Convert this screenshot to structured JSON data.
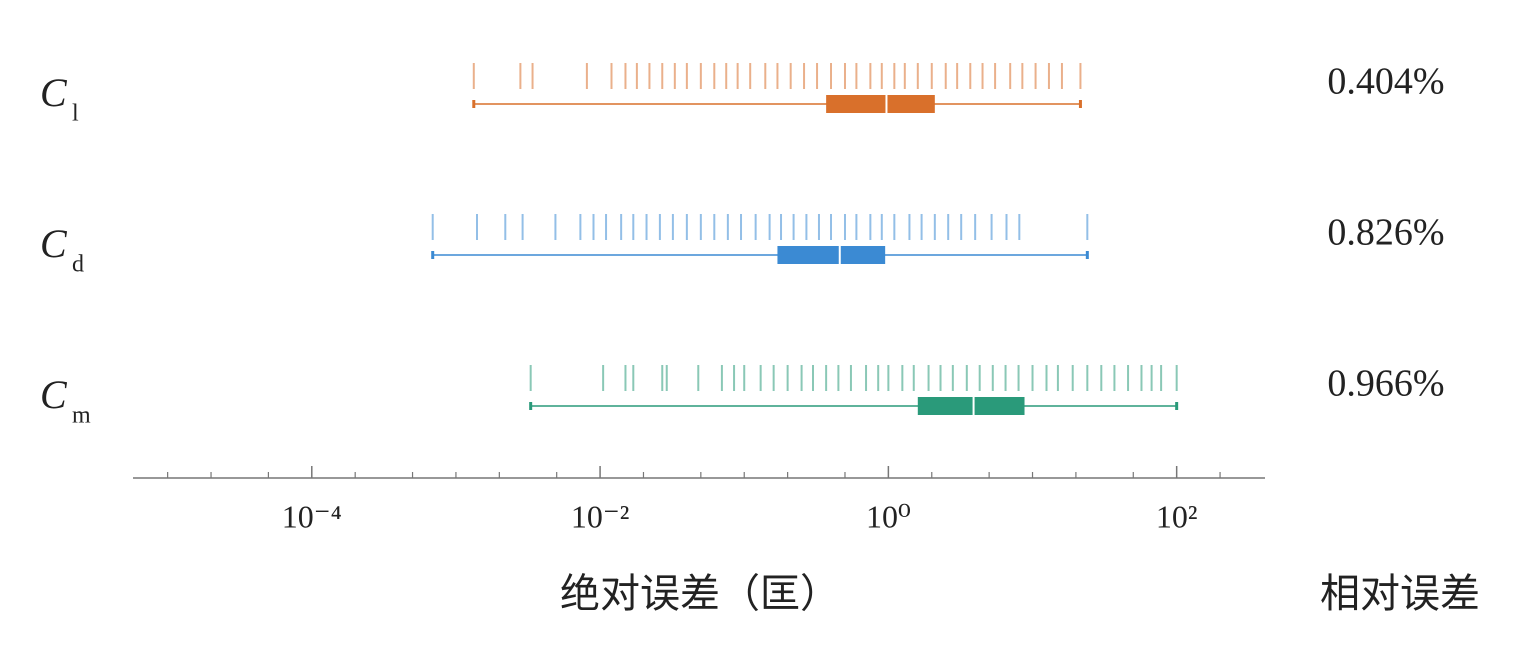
{
  "chart_data": {
    "type": "rug_box",
    "x_label": "绝对误差（匡）",
    "right_label": "相对误差",
    "xscale": "log",
    "xlim": [
      5.75e-06,
      410
    ],
    "xticks": [
      {
        "value": 0.0001,
        "label": "10⁻⁴"
      },
      {
        "value": 0.01,
        "label": "10⁻²"
      },
      {
        "value": 1,
        "label": "10⁰"
      },
      {
        "value": 100,
        "label": "10²"
      }
    ],
    "xminor_ticks": [
      1e-05,
      2e-05,
      5e-05,
      0.0002,
      0.0005,
      0.001,
      0.002,
      0.005,
      0.02,
      0.05,
      0.1,
      0.2,
      0.5,
      2,
      5,
      10,
      20,
      50,
      200
    ],
    "series": [
      {
        "name": "C",
        "subscript": "l",
        "color": "#d9702b",
        "relative_error": "0.404%",
        "box": {
          "min": 0.00133,
          "q1": 0.37,
          "median": 0.97,
          "q3": 2.1,
          "max": 21.5
        },
        "values": [
          0.00133,
          0.0028,
          0.0034,
          0.0081,
          0.012,
          0.015,
          0.018,
          0.022,
          0.027,
          0.033,
          0.04,
          0.05,
          0.062,
          0.075,
          0.09,
          0.11,
          0.14,
          0.17,
          0.21,
          0.26,
          0.32,
          0.4,
          0.5,
          0.6,
          0.75,
          0.9,
          1.1,
          1.3,
          1.6,
          2,
          2.5,
          3,
          3.7,
          4.5,
          5.5,
          7,
          8.5,
          10.5,
          13,
          16,
          21.5
        ]
      },
      {
        "name": "C",
        "subscript": "d",
        "color": "#3b8ad3",
        "relative_error": "0.826%",
        "box": {
          "min": 0.00069,
          "q1": 0.17,
          "median": 0.46,
          "q3": 0.95,
          "max": 24
        },
        "values": [
          0.00069,
          0.0014,
          0.0022,
          0.0029,
          0.0049,
          0.0073,
          0.009,
          0.011,
          0.014,
          0.017,
          0.021,
          0.026,
          0.032,
          0.04,
          0.05,
          0.062,
          0.077,
          0.095,
          0.12,
          0.15,
          0.18,
          0.22,
          0.27,
          0.33,
          0.4,
          0.5,
          0.6,
          0.75,
          0.9,
          1.1,
          1.4,
          1.7,
          2.1,
          2.6,
          3.2,
          4,
          5.2,
          6.6,
          8.1,
          24
        ]
      },
      {
        "name": "C",
        "subscript": "m",
        "color": "#2a9a7a",
        "relative_error": "0.966%",
        "box": {
          "min": 0.0033,
          "q1": 1.6,
          "median": 3.9,
          "q3": 8.8,
          "max": 100
        },
        "values": [
          0.0033,
          0.0105,
          0.015,
          0.017,
          0.027,
          0.029,
          0.048,
          0.07,
          0.085,
          0.1,
          0.13,
          0.16,
          0.2,
          0.25,
          0.3,
          0.37,
          0.45,
          0.55,
          0.7,
          0.85,
          1,
          1.25,
          1.5,
          1.9,
          2.3,
          2.8,
          3.5,
          4.3,
          5.3,
          6.5,
          8,
          10,
          12.5,
          15,
          19,
          24,
          30,
          37,
          46,
          57,
          67,
          78,
          100
        ]
      }
    ]
  }
}
